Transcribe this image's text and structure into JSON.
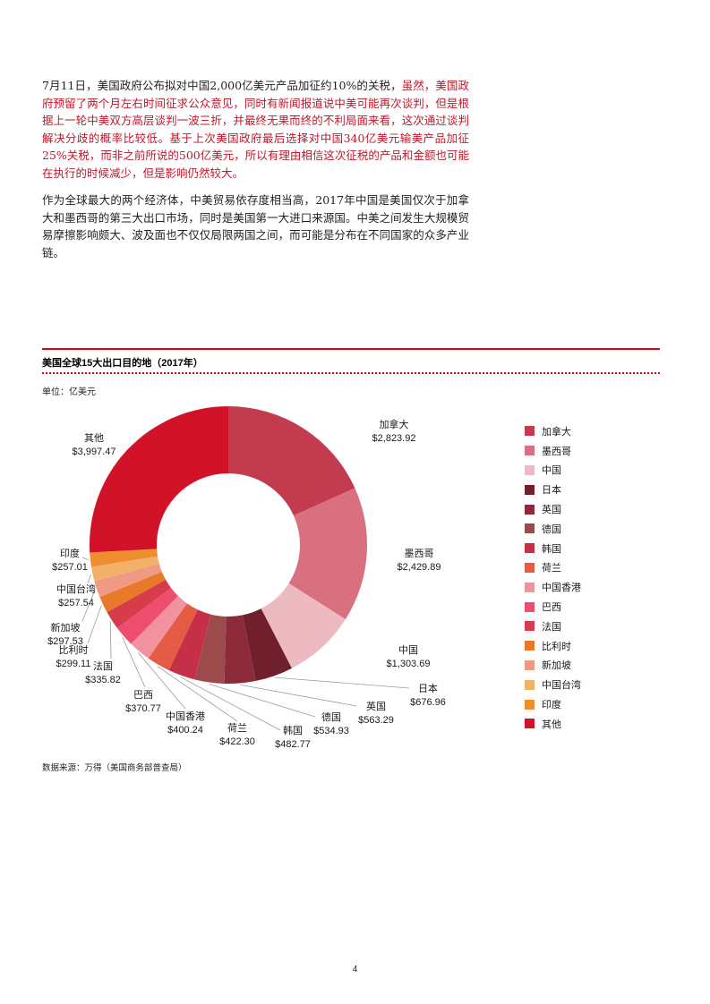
{
  "page": {
    "number": "4"
  },
  "article": {
    "red_color": "#c0182b",
    "para1_black": "7月11日，美国政府公布拟对中国2,000亿美元产品加征约10%的关税，",
    "para1_red": "虽然，美国政府预留了两个月左右时间征求公众意见，同时有新闻报道说中美可能再次谈判，但是根据上一轮中美双方高层谈判一波三折，并最终无果而终的不利局面来看，这次通过谈判解决分歧的概率比较低。基于上次美国政府最后选择对中国340亿美元输美产品加征25%关税，而非之前所说的500亿美元，所以有理由相信这次征税的产品和金额也可能在执行的时候减少，但是影响仍然较大。",
    "para2": "作为全球最大的两个经济体，中美贸易依存度相当高，2017年中国是美国仅次于加拿大和墨西哥的第三大出口市场，同时是美国第一大进口来源国。中美之间发生大规模贸易摩擦影响颇大、波及面也不仅仅局限两国之间，而可能是分布在不同国家的众多产业链。"
  },
  "chart": {
    "title": "美国全球15大出口目的地（2017年）",
    "unit_label": "单位：亿美元",
    "source": "数据来源：万得（美国商务部普查局）",
    "accent_red": "#e60012"
  },
  "chart_data": {
    "type": "pie",
    "donut": true,
    "title": "美国全球15大出口目的地（2017年）",
    "unit": "亿美元",
    "legend_position": "right",
    "start_angle_deg": 0,
    "direction": "clockwise",
    "series": [
      {
        "name": "加拿大",
        "value": 2823.92,
        "display": "$2,823.92",
        "color": "#c23b4f"
      },
      {
        "name": "墨西哥",
        "value": 2429.89,
        "display": "$2,429.89",
        "color": "#d9707f"
      },
      {
        "name": "中国",
        "value": 1303.69,
        "display": "$1,303.69",
        "color": "#eebac1"
      },
      {
        "name": "日本",
        "value": 676.96,
        "display": "$676.96",
        "color": "#701f2d"
      },
      {
        "name": "英国",
        "value": 563.29,
        "display": "$563.29",
        "color": "#8d2a3a"
      },
      {
        "name": "德国",
        "value": 534.93,
        "display": "$534.93",
        "color": "#9c4a4b"
      },
      {
        "name": "韩国",
        "value": 482.77,
        "display": "$482.77",
        "color": "#c53048"
      },
      {
        "name": "荷兰",
        "value": 422.3,
        "display": "$422.30",
        "color": "#e45c44"
      },
      {
        "name": "中国香港",
        "value": 400.24,
        "display": "$400.24",
        "color": "#f2919f"
      },
      {
        "name": "巴西",
        "value": 370.77,
        "display": "$370.77",
        "color": "#ee4d6e"
      },
      {
        "name": "法国",
        "value": 335.82,
        "display": "$335.82",
        "color": "#d63c4c"
      },
      {
        "name": "比利时",
        "value": 299.11,
        "display": "$299.11",
        "color": "#e8782a"
      },
      {
        "name": "新加坡",
        "value": 297.53,
        "display": "$297.53",
        "color": "#f09a84"
      },
      {
        "name": "中国台湾",
        "value": 257.54,
        "display": "$257.54",
        "color": "#f2b169"
      },
      {
        "name": "印度",
        "value": 257.01,
        "display": "$257.01",
        "color": "#ef8e2f"
      },
      {
        "name": "其他",
        "value": 3997.47,
        "display": "$3,997.47",
        "color": "#d21228"
      }
    ]
  }
}
